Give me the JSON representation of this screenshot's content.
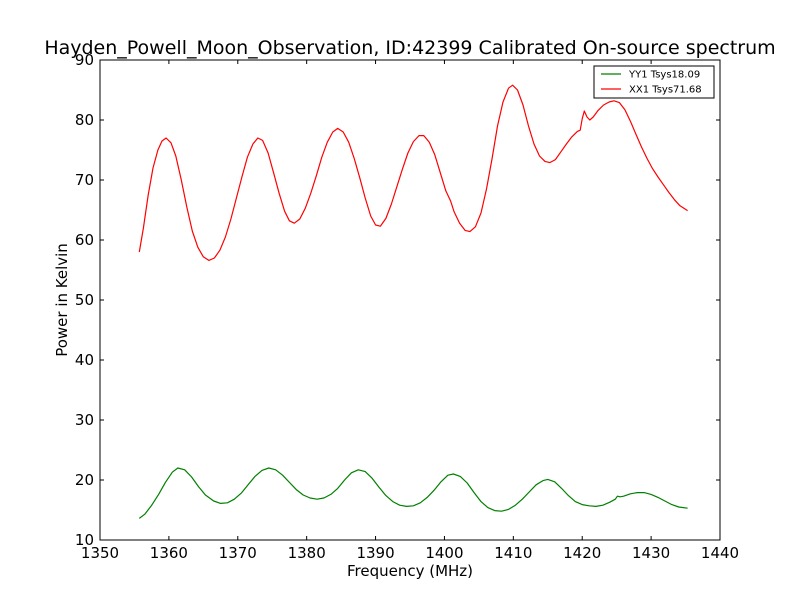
{
  "chart_data": {
    "type": "line",
    "title": "Hayden_Powell_Moon_Observation, ID:42399 Calibrated On-source spectrum",
    "xlabel": "Frequency (MHz)",
    "ylabel": "Power in Kelvin",
    "xlim": [
      1350,
      1440
    ],
    "ylim": [
      10,
      90
    ],
    "xticks": [
      1350,
      1360,
      1370,
      1380,
      1390,
      1400,
      1410,
      1420,
      1430,
      1440
    ],
    "yticks": [
      10,
      20,
      30,
      40,
      50,
      60,
      70,
      80,
      90
    ],
    "grid": false,
    "legend_position": "top-right",
    "series": [
      {
        "name": "YY1 Tsys18.09",
        "color": "#008000",
        "points": [
          [
            1355.7,
            13.6
          ],
          [
            1356.5,
            14.3
          ],
          [
            1357.5,
            15.8
          ],
          [
            1358.5,
            17.6
          ],
          [
            1359.5,
            19.6
          ],
          [
            1360.5,
            21.3
          ],
          [
            1361.3,
            22.0
          ],
          [
            1362.3,
            21.7
          ],
          [
            1363.3,
            20.5
          ],
          [
            1364.3,
            18.9
          ],
          [
            1365.3,
            17.5
          ],
          [
            1366.5,
            16.5
          ],
          [
            1367.5,
            16.1
          ],
          [
            1368.5,
            16.2
          ],
          [
            1369.5,
            16.8
          ],
          [
            1370.5,
            17.8
          ],
          [
            1371.5,
            19.2
          ],
          [
            1372.5,
            20.6
          ],
          [
            1373.5,
            21.6
          ],
          [
            1374.5,
            22.0
          ],
          [
            1375.5,
            21.7
          ],
          [
            1376.5,
            20.8
          ],
          [
            1377.5,
            19.6
          ],
          [
            1378.5,
            18.4
          ],
          [
            1379.5,
            17.5
          ],
          [
            1380.5,
            17.0
          ],
          [
            1381.5,
            16.8
          ],
          [
            1382.5,
            17.0
          ],
          [
            1383.5,
            17.6
          ],
          [
            1384.5,
            18.6
          ],
          [
            1385.5,
            20.0
          ],
          [
            1386.5,
            21.2
          ],
          [
            1387.5,
            21.7
          ],
          [
            1388.5,
            21.4
          ],
          [
            1389.5,
            20.3
          ],
          [
            1390.5,
            18.8
          ],
          [
            1391.5,
            17.4
          ],
          [
            1392.5,
            16.4
          ],
          [
            1393.5,
            15.8
          ],
          [
            1394.5,
            15.6
          ],
          [
            1395.5,
            15.7
          ],
          [
            1396.5,
            16.2
          ],
          [
            1397.5,
            17.1
          ],
          [
            1398.5,
            18.3
          ],
          [
            1399.5,
            19.7
          ],
          [
            1400.5,
            20.8
          ],
          [
            1401.3,
            21.0
          ],
          [
            1402.3,
            20.6
          ],
          [
            1403.3,
            19.5
          ],
          [
            1404.3,
            17.9
          ],
          [
            1405.3,
            16.4
          ],
          [
            1406.3,
            15.4
          ],
          [
            1407.3,
            14.9
          ],
          [
            1408.3,
            14.8
          ],
          [
            1409.3,
            15.1
          ],
          [
            1410.3,
            15.8
          ],
          [
            1411.3,
            16.8
          ],
          [
            1412.3,
            18.0
          ],
          [
            1413.3,
            19.2
          ],
          [
            1414.3,
            19.9
          ],
          [
            1415.0,
            20.1
          ],
          [
            1416.0,
            19.7
          ],
          [
            1417.0,
            18.6
          ],
          [
            1418.0,
            17.4
          ],
          [
            1419.0,
            16.4
          ],
          [
            1420.0,
            15.9
          ],
          [
            1421.0,
            15.7
          ],
          [
            1422.0,
            15.6
          ],
          [
            1423.0,
            15.8
          ],
          [
            1424.0,
            16.3
          ],
          [
            1424.8,
            16.8
          ],
          [
            1425.1,
            17.3
          ],
          [
            1425.5,
            17.2
          ],
          [
            1426.0,
            17.3
          ],
          [
            1427.0,
            17.7
          ],
          [
            1428.0,
            17.9
          ],
          [
            1429.0,
            17.9
          ],
          [
            1430.0,
            17.6
          ],
          [
            1431.0,
            17.1
          ],
          [
            1432.0,
            16.5
          ],
          [
            1433.0,
            15.9
          ],
          [
            1434.0,
            15.5
          ],
          [
            1435.3,
            15.3
          ]
        ]
      },
      {
        "name": "XX1 Tsys71.68",
        "color": "#ff0000",
        "points": [
          [
            1355.7,
            58.0
          ],
          [
            1356.3,
            62.0
          ],
          [
            1357.0,
            67.5
          ],
          [
            1357.7,
            72.0
          ],
          [
            1358.4,
            75.0
          ],
          [
            1359.0,
            76.5
          ],
          [
            1359.6,
            77.0
          ],
          [
            1360.3,
            76.2
          ],
          [
            1361.0,
            74.0
          ],
          [
            1361.8,
            70.0
          ],
          [
            1362.6,
            65.5
          ],
          [
            1363.4,
            61.5
          ],
          [
            1364.2,
            58.8
          ],
          [
            1365.0,
            57.2
          ],
          [
            1365.8,
            56.6
          ],
          [
            1366.6,
            57.0
          ],
          [
            1367.4,
            58.3
          ],
          [
            1368.2,
            60.5
          ],
          [
            1369.0,
            63.5
          ],
          [
            1369.8,
            67.0
          ],
          [
            1370.6,
            70.5
          ],
          [
            1371.4,
            73.8
          ],
          [
            1372.2,
            76.0
          ],
          [
            1372.9,
            77.0
          ],
          [
            1373.6,
            76.6
          ],
          [
            1374.4,
            74.5
          ],
          [
            1375.2,
            71.2
          ],
          [
            1376.0,
            67.8
          ],
          [
            1376.8,
            64.8
          ],
          [
            1377.5,
            63.2
          ],
          [
            1378.2,
            62.8
          ],
          [
            1379.0,
            63.5
          ],
          [
            1379.8,
            65.3
          ],
          [
            1380.6,
            67.8
          ],
          [
            1381.4,
            70.7
          ],
          [
            1382.2,
            73.8
          ],
          [
            1383.0,
            76.3
          ],
          [
            1383.8,
            78.0
          ],
          [
            1384.5,
            78.6
          ],
          [
            1385.3,
            78.0
          ],
          [
            1386.1,
            76.3
          ],
          [
            1386.9,
            73.6
          ],
          [
            1387.7,
            70.4
          ],
          [
            1388.5,
            67.0
          ],
          [
            1389.3,
            64.0
          ],
          [
            1390.0,
            62.5
          ],
          [
            1390.7,
            62.3
          ],
          [
            1391.5,
            63.6
          ],
          [
            1392.3,
            66.0
          ],
          [
            1393.1,
            68.9
          ],
          [
            1393.9,
            71.8
          ],
          [
            1394.7,
            74.5
          ],
          [
            1395.5,
            76.4
          ],
          [
            1396.3,
            77.4
          ],
          [
            1397.0,
            77.4
          ],
          [
            1397.8,
            76.3
          ],
          [
            1398.6,
            74.2
          ],
          [
            1399.4,
            71.2
          ],
          [
            1400.2,
            68.2
          ],
          [
            1400.9,
            66.5
          ],
          [
            1401.4,
            64.7
          ],
          [
            1402.2,
            62.8
          ],
          [
            1403.0,
            61.6
          ],
          [
            1403.7,
            61.4
          ],
          [
            1404.5,
            62.2
          ],
          [
            1405.3,
            64.5
          ],
          [
            1406.1,
            68.5
          ],
          [
            1406.9,
            73.5
          ],
          [
            1407.7,
            79.0
          ],
          [
            1408.5,
            83.0
          ],
          [
            1409.3,
            85.3
          ],
          [
            1409.9,
            85.8
          ],
          [
            1410.6,
            85.0
          ],
          [
            1411.4,
            82.5
          ],
          [
            1412.2,
            79.0
          ],
          [
            1413.0,
            76.0
          ],
          [
            1413.8,
            74.0
          ],
          [
            1414.6,
            73.1
          ],
          [
            1415.3,
            72.9
          ],
          [
            1416.1,
            73.4
          ],
          [
            1416.9,
            74.7
          ],
          [
            1417.7,
            76.0
          ],
          [
            1418.5,
            77.2
          ],
          [
            1419.3,
            78.1
          ],
          [
            1419.7,
            78.3
          ],
          [
            1420.0,
            80.2
          ],
          [
            1420.3,
            81.5
          ],
          [
            1420.7,
            80.5
          ],
          [
            1421.1,
            80.0
          ],
          [
            1421.6,
            80.5
          ],
          [
            1422.3,
            81.6
          ],
          [
            1423.1,
            82.5
          ],
          [
            1423.9,
            83.0
          ],
          [
            1424.6,
            83.2
          ],
          [
            1425.4,
            82.9
          ],
          [
            1426.2,
            81.7
          ],
          [
            1427.0,
            79.8
          ],
          [
            1427.8,
            77.6
          ],
          [
            1428.6,
            75.5
          ],
          [
            1429.4,
            73.6
          ],
          [
            1430.2,
            71.9
          ],
          [
            1431.0,
            70.5
          ],
          [
            1431.8,
            69.2
          ],
          [
            1432.6,
            67.9
          ],
          [
            1433.4,
            66.7
          ],
          [
            1434.2,
            65.7
          ],
          [
            1435.3,
            64.9
          ]
        ]
      }
    ]
  }
}
